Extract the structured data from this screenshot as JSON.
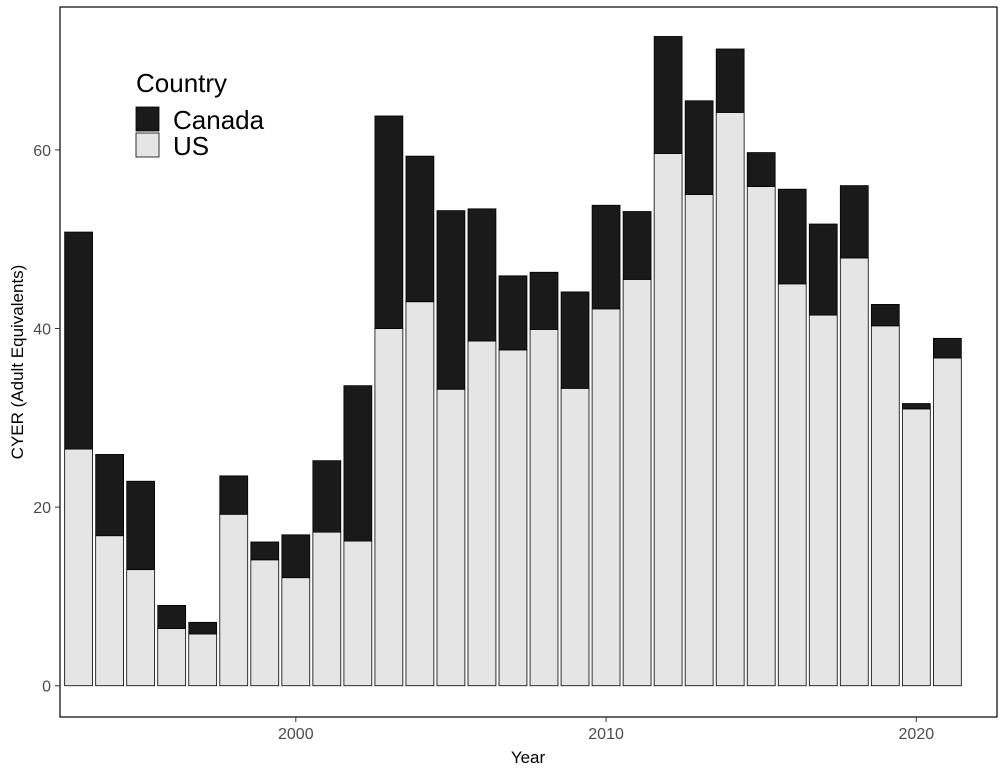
{
  "colors": {
    "Canada": "#1a1a1a",
    "US": "#e5e5e5",
    "bar_outline": "#000000",
    "background": "#ffffff"
  },
  "chart_data": {
    "type": "bar",
    "stacked": true,
    "title": "",
    "xlabel": "Year",
    "ylabel": "CYER (Adult Equivalents)",
    "xlim": [
      1992.4,
      2022.6
    ],
    "ylim": [
      -3.5,
      76
    ],
    "x_ticks": [
      2000,
      2010,
      2020
    ],
    "y_ticks": [
      0,
      20,
      40,
      60
    ],
    "grid": false,
    "legend": {
      "title": "Country",
      "placement": "top-left",
      "entries": [
        "Canada",
        "US"
      ]
    },
    "categories": [
      1993,
      1994,
      1995,
      1996,
      1997,
      1998,
      1999,
      2000,
      2001,
      2002,
      2003,
      2004,
      2005,
      2006,
      2007,
      2008,
      2009,
      2010,
      2011,
      2012,
      2013,
      2014,
      2015,
      2016,
      2017,
      2018,
      2019,
      2020,
      2021
    ],
    "series": [
      {
        "name": "US",
        "values": [
          26.5,
          16.8,
          13.0,
          6.4,
          5.8,
          19.2,
          14.1,
          12.1,
          17.2,
          16.2,
          40.0,
          43.0,
          33.2,
          38.6,
          37.6,
          39.9,
          33.3,
          42.2,
          45.5,
          59.6,
          55.0,
          64.2,
          55.9,
          45.0,
          41.5,
          47.9,
          40.3,
          31.0,
          36.7
        ]
      },
      {
        "name": "Canada",
        "values": [
          24.3,
          9.1,
          9.9,
          2.6,
          1.3,
          4.3,
          2.0,
          4.8,
          8.0,
          17.4,
          23.8,
          16.3,
          20.0,
          14.8,
          8.3,
          6.4,
          10.8,
          11.6,
          7.6,
          13.1,
          10.5,
          7.1,
          3.8,
          10.6,
          10.2,
          8.1,
          2.4,
          0.6,
          2.2
        ]
      }
    ]
  }
}
